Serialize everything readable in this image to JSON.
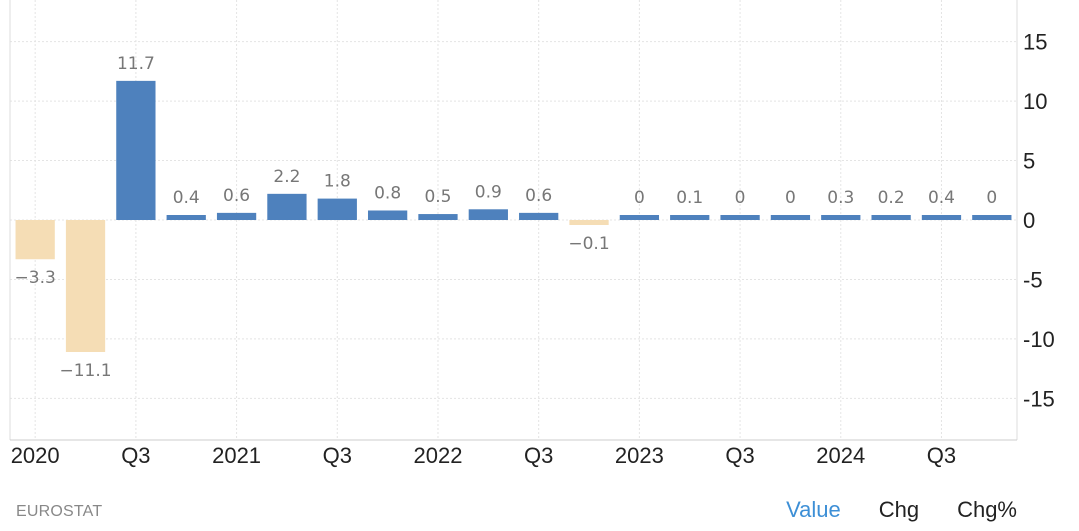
{
  "chart_data": {
    "type": "bar",
    "title": "",
    "xlabel": "",
    "ylabel": "",
    "categories": [
      "2020 Q1",
      "2020 Q2",
      "2020 Q3",
      "2020 Q4",
      "2021 Q1",
      "2021 Q2",
      "2021 Q3",
      "2021 Q4",
      "2022 Q1",
      "2022 Q2",
      "2022 Q3",
      "2022 Q4",
      "2023 Q1",
      "2023 Q2",
      "2023 Q3",
      "2023 Q4",
      "2024 Q1",
      "2024 Q2",
      "2024 Q3",
      "2024 Q4"
    ],
    "values": [
      -3.3,
      -11.1,
      11.7,
      0.4,
      0.6,
      2.2,
      1.8,
      0.8,
      0.5,
      0.9,
      0.6,
      -0.1,
      0,
      0.1,
      0,
      0,
      0.3,
      0.2,
      0.4,
      0
    ],
    "data_labels": [
      "-3.3",
      "-11.1",
      "11.7",
      "0.4",
      "0.6",
      "2.2",
      "1.8",
      "0.8",
      "0.5",
      "0.9",
      "0.6",
      "-0.1",
      "0",
      "0.1",
      "0",
      "0",
      "0.3",
      "0.2",
      "0.4",
      "0"
    ],
    "x_tick_labels": [
      {
        "index": 0,
        "label": "2020"
      },
      {
        "index": 2,
        "label": "Q3"
      },
      {
        "index": 4,
        "label": "2021"
      },
      {
        "index": 6,
        "label": "Q3"
      },
      {
        "index": 8,
        "label": "2022"
      },
      {
        "index": 10,
        "label": "Q3"
      },
      {
        "index": 12,
        "label": "2023"
      },
      {
        "index": 14,
        "label": "Q3"
      },
      {
        "index": 16,
        "label": "2024"
      },
      {
        "index": 18,
        "label": "Q3"
      }
    ],
    "y_ticks": [
      15,
      10,
      5,
      0,
      -5,
      -10,
      -15
    ],
    "y_tick_labels": [
      "15",
      "10",
      "5",
      "0",
      "-5",
      "-10",
      "-15"
    ],
    "ylim": [
      -18.5,
      18.5
    ],
    "y_axis_side": "right",
    "grid": true,
    "colors": {
      "positive": "#4e81bd",
      "negative": "#f5ddb5",
      "label": "#777777",
      "grid": "#e4e4e4"
    }
  },
  "footer": {
    "source": "EUROSTAT",
    "toggles": [
      {
        "label": "Value",
        "active": true
      },
      {
        "label": "Chg",
        "active": false
      },
      {
        "label": "Chg%",
        "active": false
      }
    ]
  }
}
